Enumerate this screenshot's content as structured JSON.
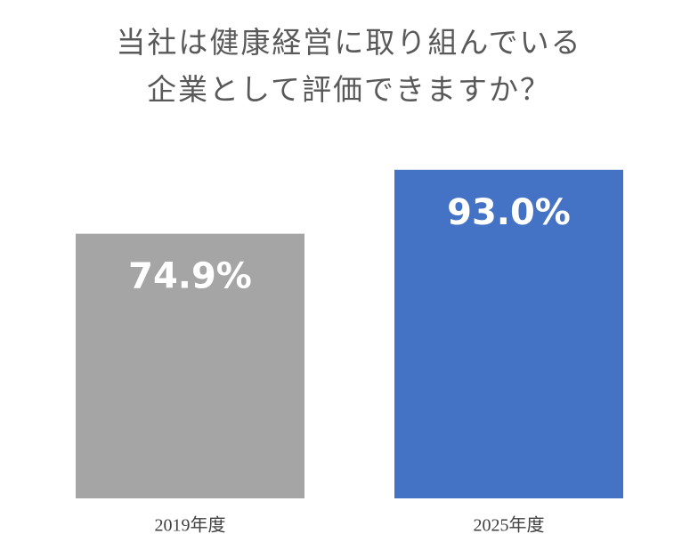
{
  "chart_data": {
    "type": "bar",
    "title": [
      "当社は健康経営に取り組んでいる",
      "企業として評価できますか？"
    ],
    "categories": [
      "2019年度",
      "2025年度"
    ],
    "values": [
      74.9,
      93.0
    ],
    "value_labels": [
      "74.9%",
      "93.0%"
    ],
    "colors": [
      "#a5a5a5",
      "#4472c4"
    ],
    "ylim": [
      0,
      100
    ]
  }
}
